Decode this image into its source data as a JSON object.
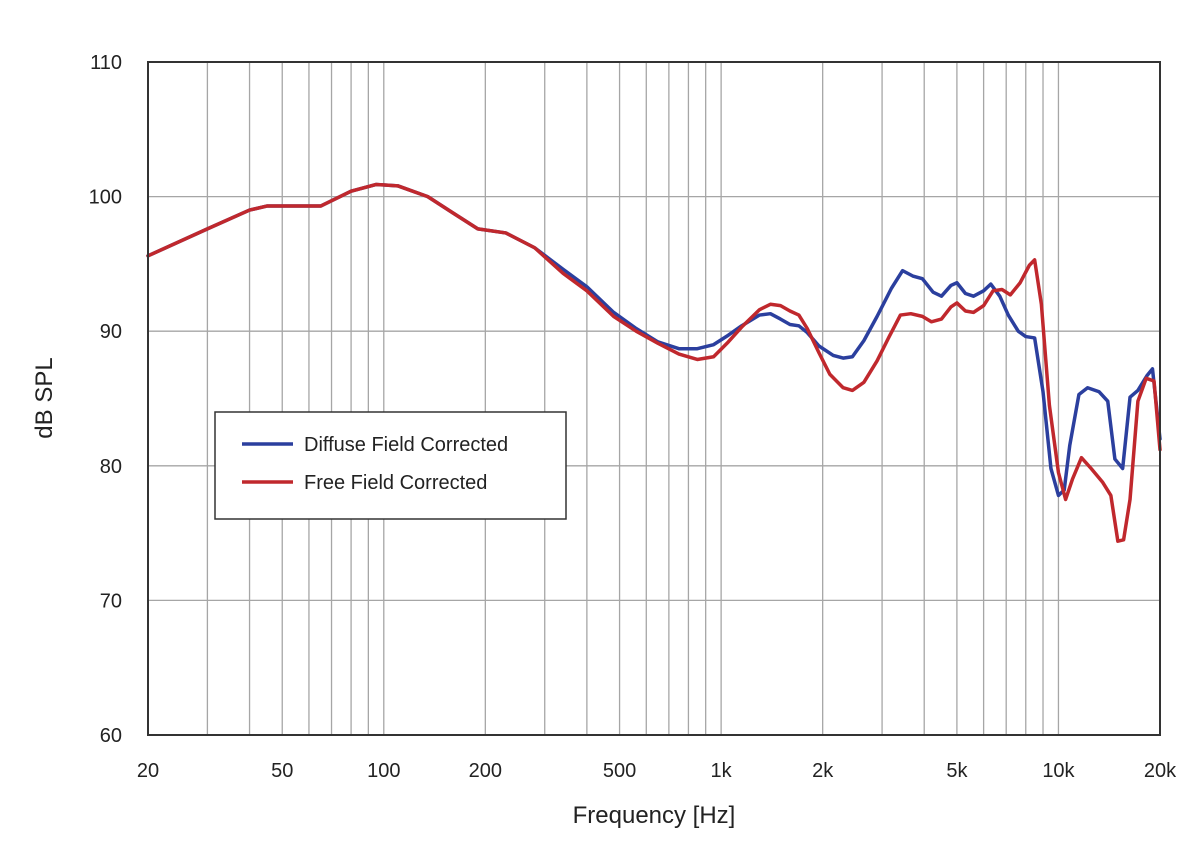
{
  "chart_data": {
    "type": "line",
    "title": "",
    "xlabel": "Frequency [Hz]",
    "ylabel": "dB SPL",
    "x_scale": "log",
    "xlim": [
      20,
      20000
    ],
    "ylim": [
      60,
      110
    ],
    "grid": true,
    "legend_position": "left-middle",
    "x_ticks": [
      {
        "value": 20,
        "label": "20"
      },
      {
        "value": 50,
        "label": "50"
      },
      {
        "value": 100,
        "label": "100"
      },
      {
        "value": 200,
        "label": "200"
      },
      {
        "value": 500,
        "label": "500"
      },
      {
        "value": 1000,
        "label": "1k"
      },
      {
        "value": 2000,
        "label": "2k"
      },
      {
        "value": 5000,
        "label": "5k"
      },
      {
        "value": 10000,
        "label": "10k"
      },
      {
        "value": 20000,
        "label": "20k"
      }
    ],
    "y_ticks": [
      60,
      70,
      80,
      90,
      100,
      110
    ],
    "series": [
      {
        "name": "Diffuse Field Corrected",
        "color": "#2b3f9e",
        "points": [
          [
            20,
            95.6
          ],
          [
            30,
            97.6
          ],
          [
            40,
            99.0
          ],
          [
            45,
            99.3
          ],
          [
            55,
            99.3
          ],
          [
            65,
            99.3
          ],
          [
            80,
            100.4
          ],
          [
            95,
            100.9
          ],
          [
            110,
            100.8
          ],
          [
            135,
            100.0
          ],
          [
            160,
            98.8
          ],
          [
            190,
            97.6
          ],
          [
            230,
            97.3
          ],
          [
            280,
            96.2
          ],
          [
            340,
            94.6
          ],
          [
            400,
            93.3
          ],
          [
            480,
            91.4
          ],
          [
            560,
            90.2
          ],
          [
            650,
            89.2
          ],
          [
            750,
            88.7
          ],
          [
            850,
            88.7
          ],
          [
            950,
            89.0
          ],
          [
            1050,
            89.7
          ],
          [
            1150,
            90.4
          ],
          [
            1300,
            91.2
          ],
          [
            1400,
            91.3
          ],
          [
            1500,
            90.9
          ],
          [
            1600,
            90.5
          ],
          [
            1700,
            90.4
          ],
          [
            1800,
            89.9
          ],
          [
            1950,
            88.9
          ],
          [
            2150,
            88.2
          ],
          [
            2300,
            88.0
          ],
          [
            2450,
            88.1
          ],
          [
            2650,
            89.3
          ],
          [
            2900,
            91.1
          ],
          [
            3200,
            93.2
          ],
          [
            3450,
            94.5
          ],
          [
            3700,
            94.1
          ],
          [
            3950,
            93.9
          ],
          [
            4250,
            92.9
          ],
          [
            4500,
            92.6
          ],
          [
            4800,
            93.4
          ],
          [
            5000,
            93.6
          ],
          [
            5300,
            92.8
          ],
          [
            5600,
            92.6
          ],
          [
            6000,
            93.0
          ],
          [
            6300,
            93.5
          ],
          [
            6700,
            92.6
          ],
          [
            7100,
            91.2
          ],
          [
            7600,
            90.0
          ],
          [
            8000,
            89.6
          ],
          [
            8500,
            89.5
          ],
          [
            9000,
            85.5
          ],
          [
            9500,
            79.8
          ],
          [
            10000,
            77.8
          ],
          [
            10400,
            78.2
          ],
          [
            10800,
            81.5
          ],
          [
            11500,
            85.3
          ],
          [
            12200,
            85.8
          ],
          [
            13200,
            85.5
          ],
          [
            14000,
            84.8
          ],
          [
            14700,
            80.5
          ],
          [
            15500,
            79.8
          ],
          [
            16300,
            85.1
          ],
          [
            17200,
            85.6
          ],
          [
            18300,
            86.7
          ],
          [
            19000,
            87.2
          ],
          [
            20000,
            82.0
          ]
        ]
      },
      {
        "name": "Free Field Corrected",
        "color": "#c0282d",
        "points": [
          [
            20,
            95.6
          ],
          [
            30,
            97.6
          ],
          [
            40,
            99.0
          ],
          [
            45,
            99.3
          ],
          [
            55,
            99.3
          ],
          [
            65,
            99.3
          ],
          [
            80,
            100.4
          ],
          [
            95,
            100.9
          ],
          [
            110,
            100.8
          ],
          [
            135,
            100.0
          ],
          [
            160,
            98.8
          ],
          [
            190,
            97.6
          ],
          [
            230,
            97.3
          ],
          [
            280,
            96.2
          ],
          [
            340,
            94.3
          ],
          [
            400,
            93.0
          ],
          [
            480,
            91.1
          ],
          [
            560,
            90.0
          ],
          [
            650,
            89.1
          ],
          [
            750,
            88.3
          ],
          [
            850,
            87.9
          ],
          [
            950,
            88.1
          ],
          [
            1050,
            89.2
          ],
          [
            1150,
            90.3
          ],
          [
            1300,
            91.6
          ],
          [
            1400,
            92.0
          ],
          [
            1500,
            91.9
          ],
          [
            1600,
            91.5
          ],
          [
            1700,
            91.2
          ],
          [
            1800,
            90.2
          ],
          [
            1950,
            88.4
          ],
          [
            2100,
            86.8
          ],
          [
            2300,
            85.8
          ],
          [
            2450,
            85.6
          ],
          [
            2650,
            86.2
          ],
          [
            2900,
            87.8
          ],
          [
            3150,
            89.6
          ],
          [
            3400,
            91.2
          ],
          [
            3650,
            91.3
          ],
          [
            3950,
            91.1
          ],
          [
            4200,
            90.7
          ],
          [
            4500,
            90.9
          ],
          [
            4800,
            91.8
          ],
          [
            5000,
            92.1
          ],
          [
            5300,
            91.5
          ],
          [
            5600,
            91.4
          ],
          [
            6000,
            91.9
          ],
          [
            6400,
            93.0
          ],
          [
            6800,
            93.1
          ],
          [
            7200,
            92.7
          ],
          [
            7700,
            93.6
          ],
          [
            8200,
            94.9
          ],
          [
            8500,
            95.3
          ],
          [
            8900,
            92.0
          ],
          [
            9400,
            84.5
          ],
          [
            10000,
            79.5
          ],
          [
            10500,
            77.5
          ],
          [
            11000,
            79.0
          ],
          [
            11700,
            80.6
          ],
          [
            12500,
            79.8
          ],
          [
            13500,
            78.8
          ],
          [
            14300,
            77.8
          ],
          [
            15000,
            74.4
          ],
          [
            15600,
            74.5
          ],
          [
            16300,
            77.5
          ],
          [
            17200,
            84.8
          ],
          [
            18200,
            86.5
          ],
          [
            19200,
            86.3
          ],
          [
            20000,
            81.2
          ]
        ]
      }
    ]
  }
}
